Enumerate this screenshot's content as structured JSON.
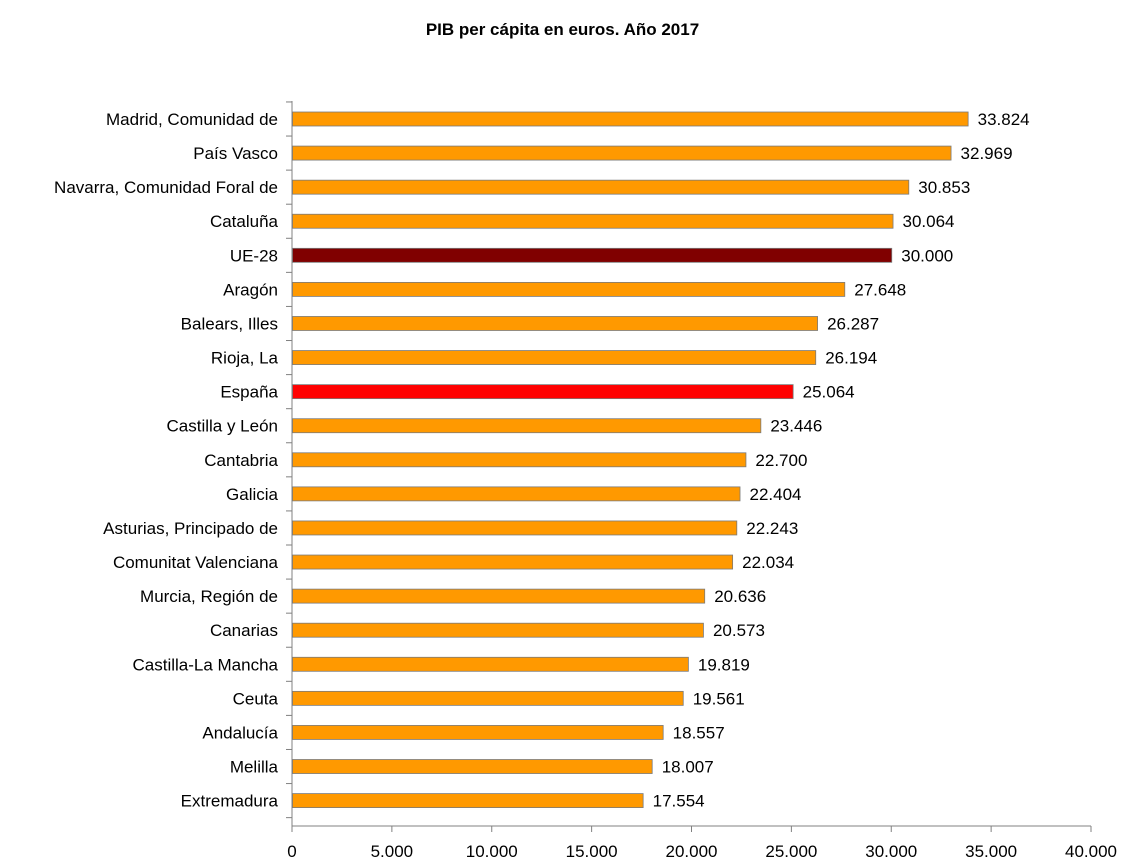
{
  "chart_data": {
    "type": "bar",
    "orientation": "horizontal",
    "title": "PIB  per cápita en euros. Año 2017",
    "xlabel": "",
    "ylabel": "",
    "xlim": [
      0,
      40000
    ],
    "ticks": [
      0,
      5000,
      10000,
      15000,
      20000,
      25000,
      30000,
      35000,
      40000
    ],
    "tick_labels": [
      "0",
      "5.000",
      "10.000",
      "15.000",
      "20.000",
      "25.000",
      "30.000",
      "35.000",
      "40.000"
    ],
    "grid": false,
    "legend": "none",
    "categories": [
      "Madrid, Comunidad de",
      "País Vasco",
      "Navarra, Comunidad Foral de",
      "Cataluña",
      "UE-28",
      "Aragón",
      "Balears, Illes",
      "Rioja, La",
      "España",
      "Castilla y León",
      "Cantabria",
      "Galicia",
      "Asturias, Principado de",
      "Comunitat Valenciana",
      "Murcia, Región de",
      "Canarias",
      "Castilla-La Mancha",
      "Ceuta ",
      "Andalucía",
      "Melilla",
      "Extremadura"
    ],
    "values": [
      33824,
      32969,
      30853,
      30064,
      30000,
      27648,
      26287,
      26194,
      25064,
      23446,
      22700,
      22404,
      22243,
      22034,
      20636,
      20573,
      19819,
      19561,
      18557,
      18007,
      17554
    ],
    "value_labels": [
      "33.824",
      "32.969",
      "30.853",
      "30.064",
      "30.000",
      "27.648",
      "26.287",
      "26.194",
      "25.064",
      "23.446",
      "22.700",
      "22.404",
      "22.243",
      "22.034",
      "20.636",
      "20.573",
      "19.819",
      "19.561",
      "18.557",
      "18.007",
      "17.554"
    ],
    "colors": {
      "default": "#FF9900",
      "highlights": {
        "UE-28": "#800000",
        "España": "#FF0000"
      },
      "border": "#7a7a7a"
    }
  }
}
